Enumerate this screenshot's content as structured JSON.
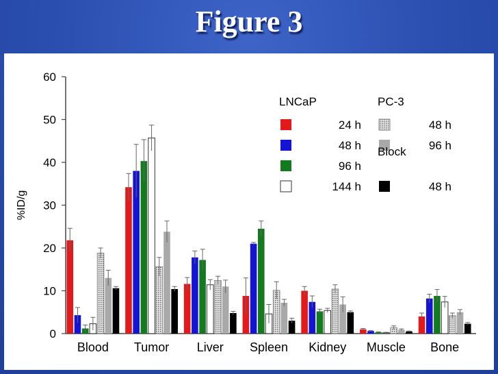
{
  "slide": {
    "title": "Figure 3"
  },
  "chart_data": {
    "type": "bar",
    "title": "",
    "xlabel": "",
    "ylabel": "%ID/g",
    "ylim": [
      0,
      60
    ],
    "yticks": [
      0,
      10,
      20,
      30,
      40,
      50,
      60
    ],
    "grid": false,
    "legend_position": "top-right",
    "categories": [
      "Blood",
      "Tumor",
      "Liver",
      "Spleen",
      "Kidney",
      "Muscle",
      "Bone"
    ],
    "legend": {
      "groups": [
        {
          "label": "LNCaP",
          "entries": [
            {
              "time": "24 h",
              "series_index": 0
            },
            {
              "time": "48 h",
              "series_index": 1
            },
            {
              "time": "96 h",
              "series_index": 2
            },
            {
              "time": "144 h",
              "series_index": 3
            }
          ]
        },
        {
          "label": "PC-3",
          "entries": [
            {
              "time": "48 h",
              "series_index": 4
            },
            {
              "time": "96 h",
              "series_index": 5
            }
          ]
        },
        {
          "label": "Block",
          "entries": [
            {
              "time": "48 h",
              "series_index": 6
            }
          ]
        }
      ]
    },
    "series": [
      {
        "group": "LNCaP",
        "time": "24 h",
        "color": "#e31a1c",
        "pattern": "solid",
        "values": [
          21.8,
          34.2,
          11.6,
          8.8,
          10.0,
          1.0,
          4.0
        ],
        "errors": [
          2.8,
          3.2,
          1.5,
          4.2,
          1.0,
          0.2,
          0.8
        ]
      },
      {
        "group": "LNCaP",
        "time": "48 h",
        "color": "#1414d2",
        "pattern": "solid",
        "values": [
          4.3,
          38.0,
          17.8,
          21.0,
          7.4,
          0.6,
          8.2
        ],
        "errors": [
          1.8,
          6.2,
          1.5,
          0.3,
          1.4,
          0.1,
          1.0
        ]
      },
      {
        "group": "LNCaP",
        "time": "96 h",
        "color": "#137a1f",
        "pattern": "solid",
        "values": [
          1.2,
          40.3,
          17.2,
          24.5,
          5.2,
          0.3,
          8.8
        ],
        "errors": [
          0.8,
          5.0,
          2.5,
          1.8,
          0.5,
          0.1,
          1.5
        ]
      },
      {
        "group": "LNCaP",
        "time": "144 h",
        "color": "#ffffff",
        "pattern": "open",
        "values": [
          2.3,
          45.7,
          11.4,
          4.6,
          5.4,
          0.2,
          7.4
        ],
        "errors": [
          1.5,
          3.0,
          1.2,
          2.2,
          0.5,
          0.1,
          1.3
        ]
      },
      {
        "group": "PC-3",
        "time": "48 h",
        "color": "#cfcfcf",
        "pattern": "dotted",
        "values": [
          18.8,
          15.6,
          12.4,
          10.1,
          10.4,
          1.4,
          4.2
        ],
        "errors": [
          1.2,
          2.2,
          1.0,
          2.0,
          1.0,
          0.4,
          0.6
        ]
      },
      {
        "group": "PC-3",
        "time": "96 h",
        "color": "#a9a9a9",
        "pattern": "solid",
        "values": [
          13.0,
          23.8,
          11.0,
          7.2,
          6.8,
          0.9,
          5.0
        ],
        "errors": [
          1.8,
          2.5,
          1.5,
          0.8,
          1.8,
          0.2,
          0.6
        ]
      },
      {
        "group": "Block",
        "time": "48 h",
        "color": "#000000",
        "pattern": "solid",
        "values": [
          10.6,
          10.4,
          4.8,
          3.0,
          5.0,
          0.5,
          2.3
        ],
        "errors": [
          0.4,
          0.6,
          0.4,
          0.6,
          0.3,
          0.1,
          0.3
        ]
      }
    ]
  }
}
